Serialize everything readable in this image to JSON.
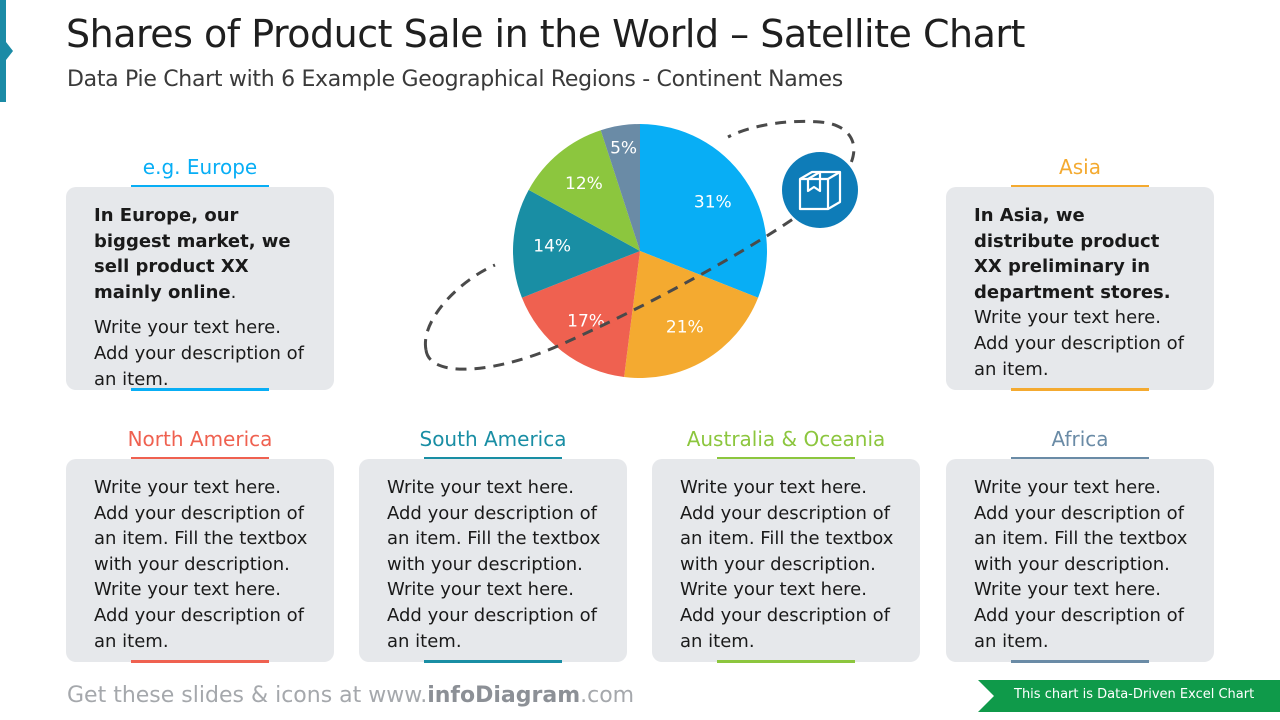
{
  "header": {
    "title": "Shares of Product Sale in the World – Satellite Chart",
    "subtitle": "Data Pie Chart with 6 Example Geographical Regions - Continent Names"
  },
  "colors": {
    "europe": "#08aef5",
    "asia": "#f4aa30",
    "north_america": "#ef6150",
    "south_america": "#198ea4",
    "australia_oceania": "#8cc63e",
    "africa": "#6a8ba6",
    "satellite": "#0e7cb8",
    "box_background": "#e6e8eb"
  },
  "regions": {
    "europe": {
      "title": "e.g. Europe",
      "bold_text": "In Europe, our biggest market, we sell product XX mainly online",
      "bold_suffix": ".",
      "text": "Write your text here. Add your description of an item."
    },
    "asia": {
      "title": "Asia",
      "bold_text": "In Asia, we distribute product XX preliminary in department stores.",
      "text": "Write your text here. Add your description of an item."
    },
    "north_america": {
      "title": "North America",
      "text": "Write your text here. Add your description of an item. Fill the textbox with your description. Write your text here. Add your description of an item."
    },
    "south_america": {
      "title": "South America",
      "text": "Write your text here. Add your description of an item. Fill the textbox with your description. Write your text here. Add your description of an item."
    },
    "australia_oceania": {
      "title": "Australia & Oceania",
      "text": "Write your text here. Add your description of an item. Fill the textbox with your description. Write your text here. Add your description of an item."
    },
    "africa": {
      "title": "Africa",
      "text": "Write your text here. Add your description of an item. Fill the textbox with your description. Write your text here. Add your description of an item."
    }
  },
  "chart_data": {
    "type": "pie",
    "categories": [
      "Europe",
      "Asia",
      "North America",
      "South America",
      "Australia & Oceania",
      "Africa"
    ],
    "values": [
      31,
      21,
      17,
      14,
      12,
      5
    ],
    "labels": [
      "31%",
      "21%",
      "17%",
      "14%",
      "12%",
      "5%"
    ],
    "colors": [
      "#08aef5",
      "#f4aa30",
      "#ef6150",
      "#198ea4",
      "#8cc63e",
      "#6a8ba6"
    ],
    "start": "12 o'clock",
    "direction": "clockwise",
    "satellite_icon": "package-box-icon"
  },
  "footer": {
    "prefix": "Get these slides & icons at www.",
    "brand": "infoDiagram",
    "suffix": ".com",
    "banner": "This chart is Data-Driven Excel Chart"
  }
}
